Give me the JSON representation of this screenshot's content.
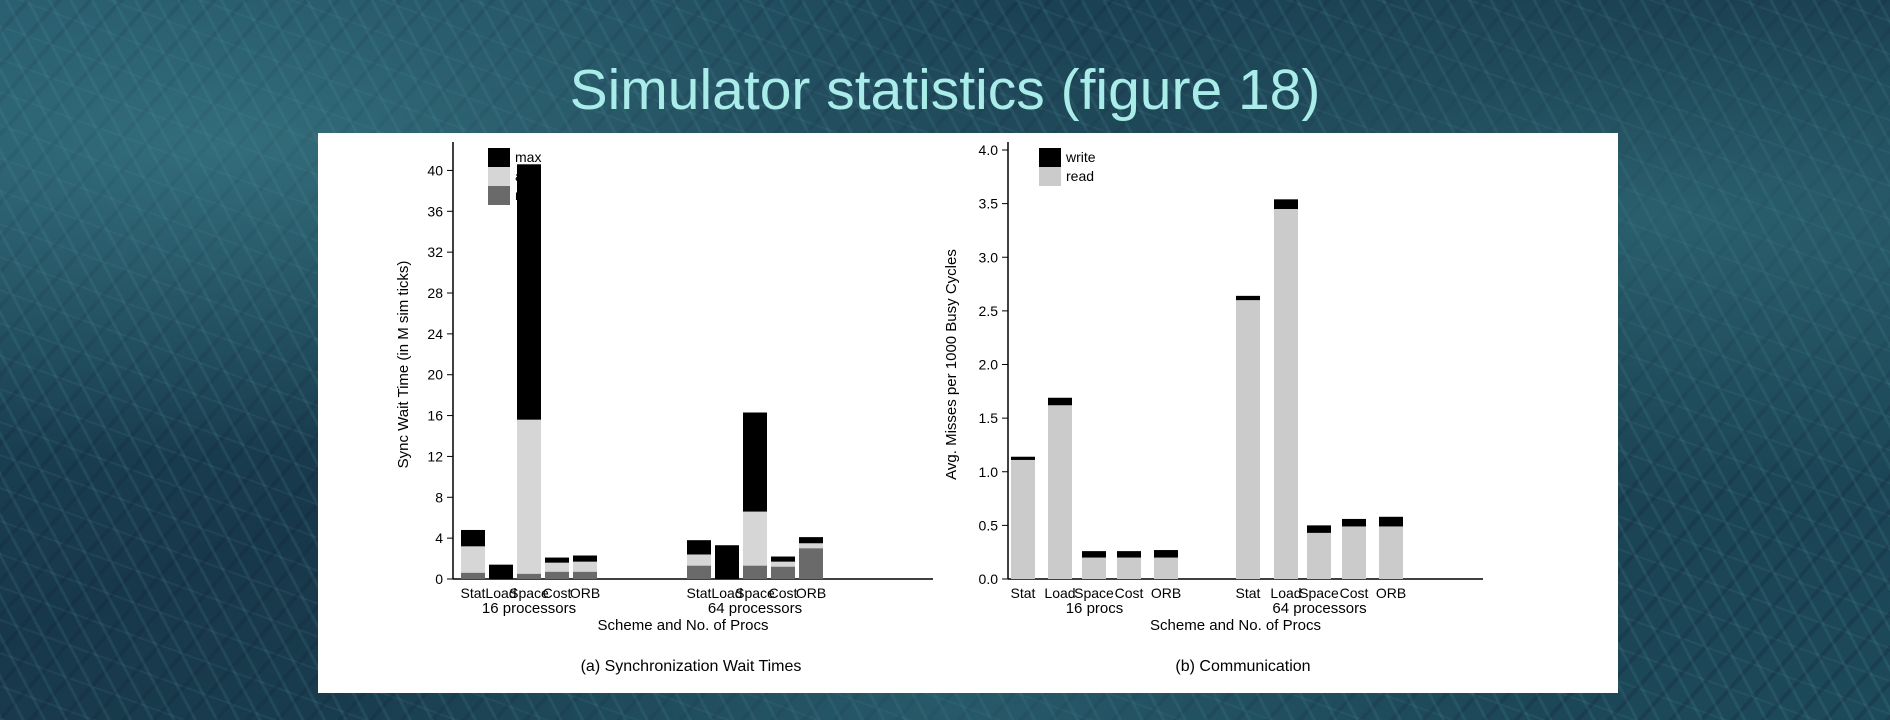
{
  "slide": {
    "title": "Simulator statistics (figure 18)"
  },
  "chart_data": [
    {
      "type": "bar",
      "stacked": true,
      "caption": "(a) Synchronization Wait Times",
      "xlabel": "Scheme and No. of Procs",
      "ylabel": "Sync Wait Time (in M sim ticks)",
      "ylim": [
        0,
        42
      ],
      "yticks": [
        0,
        4,
        8,
        12,
        16,
        20,
        24,
        28,
        32,
        36,
        40
      ],
      "legend_position": "top-left",
      "groups": [
        {
          "label": "16 processors",
          "categories": [
            "Stat",
            "Load",
            "Space",
            "Cost",
            "ORB"
          ]
        },
        {
          "label": "64 processors",
          "categories": [
            "Stat",
            "Load",
            "Space",
            "Cost",
            "ORB"
          ]
        }
      ],
      "series": [
        {
          "name": "min",
          "color": "#6a6a6a",
          "values": [
            [
              0.6,
              1.4,
              0.5,
              0.7,
              0.7
            ],
            [
              1.3,
              3.3,
              1.3,
              1.2,
              3.0
            ]
          ]
        },
        {
          "name": "avg",
          "color": "#d6d6d6",
          "values": [
            [
              3.2,
              1.4,
              15.6,
              1.6,
              1.7
            ],
            [
              2.4,
              3.3,
              6.6,
              1.7,
              3.5
            ]
          ]
        },
        {
          "name": "max",
          "color": "#000000",
          "values": [
            [
              4.8,
              1.4,
              40.6,
              2.1,
              2.3
            ],
            [
              3.8,
              3.3,
              16.3,
              2.2,
              4.1
            ]
          ]
        }
      ]
    },
    {
      "type": "bar",
      "stacked": true,
      "caption": "(b) Communication",
      "xlabel": "Scheme and No. of Procs",
      "ylabel": "Avg. Misses per 1000 Busy Cycles",
      "ylim": [
        0,
        4.0
      ],
      "yticks": [
        "0.0",
        "0.5",
        "1.0",
        "1.5",
        "2.0",
        "2.5",
        "3.0",
        "3.5",
        "4.0"
      ],
      "legend_position": "top-left",
      "groups": [
        {
          "label": "16 procs",
          "categories": [
            "Stat",
            "Load",
            "Space",
            "Cost",
            "ORB"
          ]
        },
        {
          "label": "64 processors",
          "categories": [
            "Stat",
            "Load",
            "Space",
            "Cost",
            "ORB"
          ]
        }
      ],
      "series": [
        {
          "name": "read",
          "color": "#cbcbcb",
          "values": [
            [
              1.11,
              1.62,
              0.2,
              0.2,
              0.2
            ],
            [
              2.6,
              3.45,
              0.43,
              0.49,
              0.49
            ]
          ]
        },
        {
          "name": "write",
          "color": "#000000",
          "values": [
            [
              0.03,
              0.07,
              0.06,
              0.06,
              0.07
            ],
            [
              0.04,
              0.09,
              0.07,
              0.07,
              0.09
            ]
          ]
        }
      ]
    }
  ]
}
